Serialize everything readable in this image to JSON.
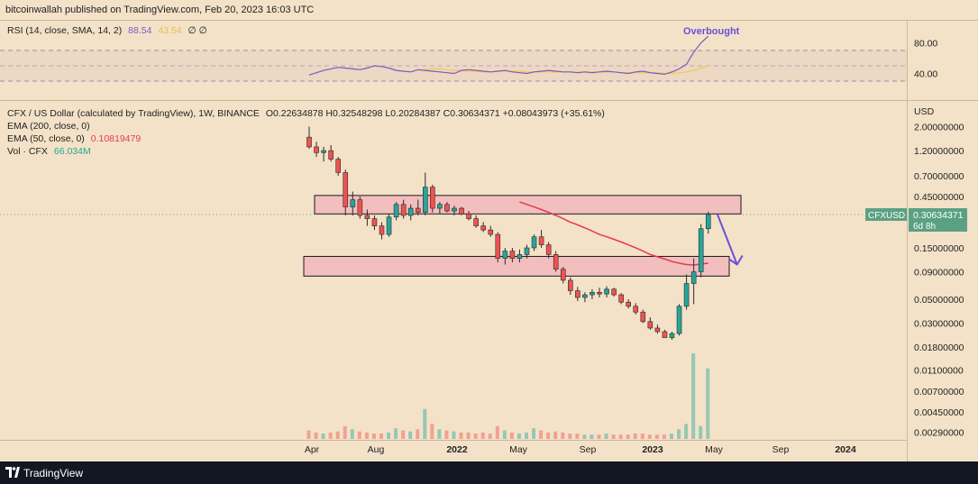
{
  "header": {
    "publisher": "bitcoinwallah published on TradingView.com, Feb 20, 2023 16:03 UTC"
  },
  "footer": {
    "brand": "TradingView",
    "logo_icon": "tradingview-logo-icon"
  },
  "rsi_panel": {
    "label": "RSI (14, close, SMA, 14, 2)",
    "rsi_value": "88.54",
    "sma_value": "43.54",
    "flags": "∅ ∅",
    "annotation": "Overbought",
    "y_ticks": [
      "80.00",
      "40.00"
    ],
    "rsi_series": [
      38,
      41,
      44,
      46,
      48,
      47,
      46,
      45,
      47,
      50,
      49,
      47,
      44,
      43,
      42,
      45,
      44,
      43,
      42,
      41,
      40,
      44,
      45,
      44,
      43,
      42,
      43,
      44,
      42,
      41,
      40,
      42,
      43,
      44,
      43,
      42,
      42,
      41,
      42,
      41,
      42,
      43,
      42,
      41,
      40,
      42,
      43,
      41,
      40,
      39,
      42,
      46,
      52,
      68,
      80,
      88.54
    ],
    "sma_series": [
      null,
      null,
      null,
      null,
      null,
      null,
      null,
      null,
      null,
      null,
      null,
      null,
      null,
      null,
      null,
      44,
      45,
      46,
      46,
      45,
      44,
      44,
      43,
      43,
      42,
      42,
      43,
      43,
      43,
      43,
      42,
      42,
      42,
      42,
      42,
      42,
      42,
      42,
      42,
      42,
      42,
      42,
      42,
      41,
      41,
      41,
      41,
      41,
      41,
      40,
      40,
      41,
      42,
      44,
      47,
      50
    ]
  },
  "main_panel": {
    "title": "CFX / US Dollar (calculated by TradingView), 1W, BINANCE",
    "ohlc": {
      "open": "O0.22634878",
      "high": "H0.32548298",
      "low": "L0.20284387",
      "close": "C0.30634371",
      "change": "+0.08043973 (+35.61%)"
    },
    "ema200_label": "EMA (200, close, 0)",
    "ema50_label": "EMA (50, close, 0)",
    "ema50_value": "0.10819479",
    "vol_label": "Vol · CFX",
    "vol_value": "66.034M",
    "currency": "USD",
    "price_tag": {
      "symbol": "CFXUSD",
      "price": "0.30634371",
      "countdown": "6d 8h"
    },
    "colors": {
      "up": "#26a69a",
      "down": "#ef5350",
      "ema50": "#e8394b",
      "box_fill": "#f2b7bc",
      "arrow": "#6b4fd8",
      "rsi_line": "#7e57c2",
      "rsi_sma": "#f5c94d"
    }
  },
  "chart_data": {
    "type": "candlestick",
    "scale": "log",
    "y_ticks": [
      "2.00000000",
      "1.20000000",
      "0.70000000",
      "0.45000000",
      "0.15000000",
      "0.09000000",
      "0.05000000",
      "0.03000000",
      "0.01800000",
      "0.01100000",
      "0.00700000",
      "0.00450000",
      "0.00290000"
    ],
    "x_ticks": [
      "Apr",
      "Aug",
      "2022",
      "May",
      "Sep",
      "2023",
      "May",
      "Sep",
      "2024"
    ],
    "series": [
      {
        "name": "CFX / US Dollar",
        "ohlc": [
          [
            1.6,
            2.0,
            1.25,
            1.3
          ],
          [
            1.3,
            1.45,
            1.05,
            1.15
          ],
          [
            1.15,
            1.3,
            0.95,
            1.2
          ],
          [
            1.2,
            1.35,
            0.95,
            1.0
          ],
          [
            1.0,
            1.05,
            0.7,
            0.75
          ],
          [
            0.75,
            0.8,
            0.3,
            0.36
          ],
          [
            0.36,
            0.5,
            0.3,
            0.42
          ],
          [
            0.42,
            0.45,
            0.28,
            0.3
          ],
          [
            0.3,
            0.34,
            0.24,
            0.28
          ],
          [
            0.28,
            0.3,
            0.22,
            0.24
          ],
          [
            0.24,
            0.26,
            0.18,
            0.2
          ],
          [
            0.2,
            0.31,
            0.19,
            0.29
          ],
          [
            0.29,
            0.4,
            0.27,
            0.38
          ],
          [
            0.38,
            0.42,
            0.28,
            0.3
          ],
          [
            0.3,
            0.38,
            0.27,
            0.35
          ],
          [
            0.35,
            0.42,
            0.3,
            0.32
          ],
          [
            0.32,
            0.75,
            0.3,
            0.55
          ],
          [
            0.55,
            0.58,
            0.32,
            0.35
          ],
          [
            0.35,
            0.4,
            0.31,
            0.38
          ],
          [
            0.38,
            0.4,
            0.32,
            0.33
          ],
          [
            0.33,
            0.37,
            0.3,
            0.35
          ],
          [
            0.35,
            0.36,
            0.3,
            0.31
          ],
          [
            0.31,
            0.33,
            0.27,
            0.28
          ],
          [
            0.28,
            0.3,
            0.23,
            0.24
          ],
          [
            0.24,
            0.26,
            0.21,
            0.22
          ],
          [
            0.22,
            0.24,
            0.19,
            0.2
          ],
          [
            0.2,
            0.21,
            0.11,
            0.12
          ],
          [
            0.12,
            0.15,
            0.105,
            0.14
          ],
          [
            0.14,
            0.15,
            0.11,
            0.12
          ],
          [
            0.12,
            0.145,
            0.11,
            0.13
          ],
          [
            0.13,
            0.16,
            0.12,
            0.15
          ],
          [
            0.15,
            0.2,
            0.14,
            0.19
          ],
          [
            0.19,
            0.22,
            0.15,
            0.16
          ],
          [
            0.16,
            0.17,
            0.12,
            0.13
          ],
          [
            0.13,
            0.14,
            0.09,
            0.095
          ],
          [
            0.095,
            0.1,
            0.07,
            0.075
          ],
          [
            0.075,
            0.08,
            0.055,
            0.06
          ],
          [
            0.06,
            0.065,
            0.048,
            0.052
          ],
          [
            0.052,
            0.058,
            0.047,
            0.055
          ],
          [
            0.055,
            0.062,
            0.05,
            0.058
          ],
          [
            0.058,
            0.064,
            0.052,
            0.056
          ],
          [
            0.056,
            0.066,
            0.052,
            0.062
          ],
          [
            0.062,
            0.064,
            0.053,
            0.055
          ],
          [
            0.055,
            0.057,
            0.045,
            0.047
          ],
          [
            0.047,
            0.05,
            0.041,
            0.043
          ],
          [
            0.043,
            0.046,
            0.036,
            0.038
          ],
          [
            0.038,
            0.04,
            0.03,
            0.031
          ],
          [
            0.031,
            0.034,
            0.026,
            0.027
          ],
          [
            0.027,
            0.029,
            0.024,
            0.025
          ],
          [
            0.025,
            0.026,
            0.022,
            0.022
          ],
          [
            0.022,
            0.025,
            0.021,
            0.024
          ],
          [
            0.024,
            0.045,
            0.023,
            0.043
          ],
          [
            0.043,
            0.085,
            0.04,
            0.07
          ],
          [
            0.07,
            0.12,
            0.045,
            0.09
          ],
          [
            0.09,
            0.25,
            0.08,
            0.226
          ],
          [
            0.226,
            0.325,
            0.203,
            0.306
          ]
        ]
      }
    ],
    "ema50": [
      null,
      null,
      null,
      null,
      null,
      null,
      null,
      null,
      null,
      null,
      null,
      null,
      null,
      null,
      null,
      null,
      null,
      null,
      null,
      null,
      null,
      null,
      null,
      null,
      null,
      null,
      null,
      null,
      null,
      0.4,
      0.38,
      0.36,
      0.34,
      0.32,
      0.3,
      0.28,
      0.26,
      0.245,
      0.23,
      0.215,
      0.2,
      0.19,
      0.18,
      0.17,
      0.16,
      0.15,
      0.14,
      0.13,
      0.124,
      0.118,
      0.112,
      0.108,
      0.105,
      0.104,
      0.106,
      0.108
    ],
    "volume": [
      8,
      6,
      5,
      6,
      7,
      12,
      9,
      7,
      6,
      5,
      5,
      6,
      10,
      8,
      7,
      9,
      28,
      14,
      9,
      8,
      7,
      6,
      6,
      5,
      6,
      5,
      12,
      8,
      6,
      5,
      6,
      10,
      8,
      6,
      7,
      6,
      5,
      5,
      4,
      4,
      4,
      5,
      4,
      4,
      4,
      5,
      5,
      4,
      4,
      4,
      5,
      9,
      14,
      80,
      12,
      66
    ],
    "resistance_zone": [
      0.31,
      0.46
    ],
    "support_zone": [
      0.082,
      0.125
    ]
  }
}
